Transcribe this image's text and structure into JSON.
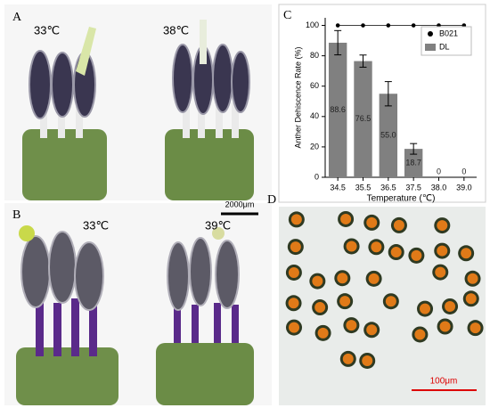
{
  "panels": {
    "a": {
      "label": "A",
      "left_temp": "33℃",
      "right_temp": "38℃",
      "scale_bar": "2000μm"
    },
    "b": {
      "label": "B",
      "left_temp": "33℃",
      "right_temp": "39℃"
    },
    "c": {
      "label": "C"
    },
    "d": {
      "label": "D",
      "scale_bar": "100μm"
    }
  },
  "chart_data": {
    "type": "bar",
    "categories": [
      "34.5",
      "35.5",
      "36.5",
      "37.5",
      "38.0",
      "39.0"
    ],
    "xlabel": "Temperature (℃)",
    "ylabel": "Anther Dehiscence Rate (%)",
    "ylim": [
      0,
      105
    ],
    "yticks": [
      0,
      20,
      40,
      60,
      80,
      100
    ],
    "legend": "upper right",
    "series": [
      {
        "name": "B021",
        "type": "line",
        "color": "#000000",
        "values": [
          100,
          100,
          100,
          100,
          100,
          100
        ]
      },
      {
        "name": "DL",
        "type": "bar",
        "color": "#808080",
        "values": [
          88.6,
          76.5,
          55.0,
          18.7,
          0,
          0
        ],
        "value_labels": [
          "88.6",
          "76.5",
          "55.0",
          "18.7",
          "0",
          "0"
        ],
        "errors": [
          8,
          4,
          8,
          3.5,
          0,
          0
        ]
      }
    ]
  }
}
